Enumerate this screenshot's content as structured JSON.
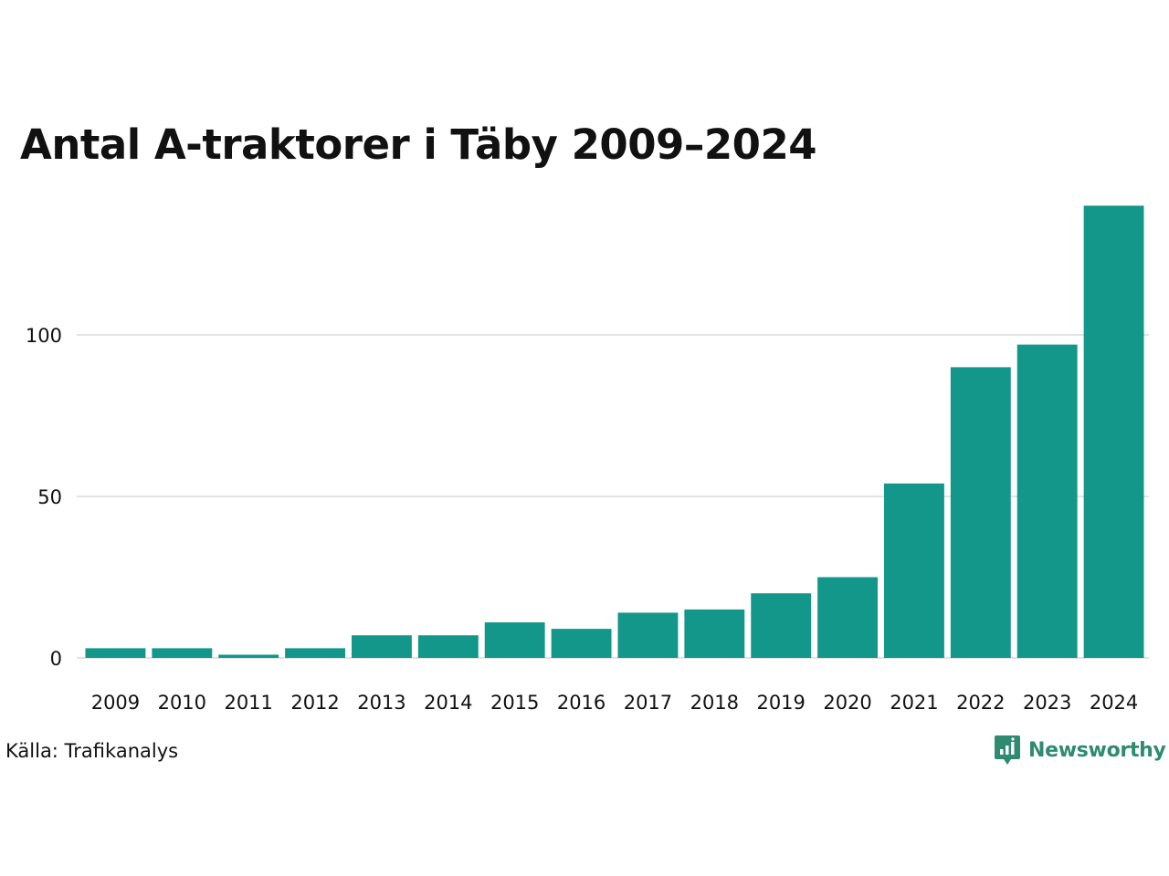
{
  "title": "Antal A-traktorer i Täby 2009–2024",
  "source": "Källa: Trafikanalys",
  "brand": {
    "name": "Newsworthy",
    "icon": "newsworthy-logo-icon",
    "color": "#2e8b72"
  },
  "colors": {
    "bar": "#13978a",
    "grid": "#e3e3e3",
    "text": "#111111"
  },
  "chart_data": {
    "type": "bar",
    "title": "Antal A-traktorer i Täby 2009–2024",
    "xlabel": "",
    "ylabel": "",
    "categories": [
      "2009",
      "2010",
      "2011",
      "2012",
      "2013",
      "2014",
      "2015",
      "2016",
      "2017",
      "2018",
      "2019",
      "2020",
      "2021",
      "2022",
      "2023",
      "2024"
    ],
    "values": [
      3,
      3,
      1,
      3,
      7,
      7,
      11,
      9,
      14,
      15,
      20,
      25,
      54,
      90,
      97,
      140
    ],
    "ylim": [
      0,
      140
    ],
    "yticks": [
      0,
      50,
      100
    ],
    "grid": true,
    "legend": "none"
  }
}
